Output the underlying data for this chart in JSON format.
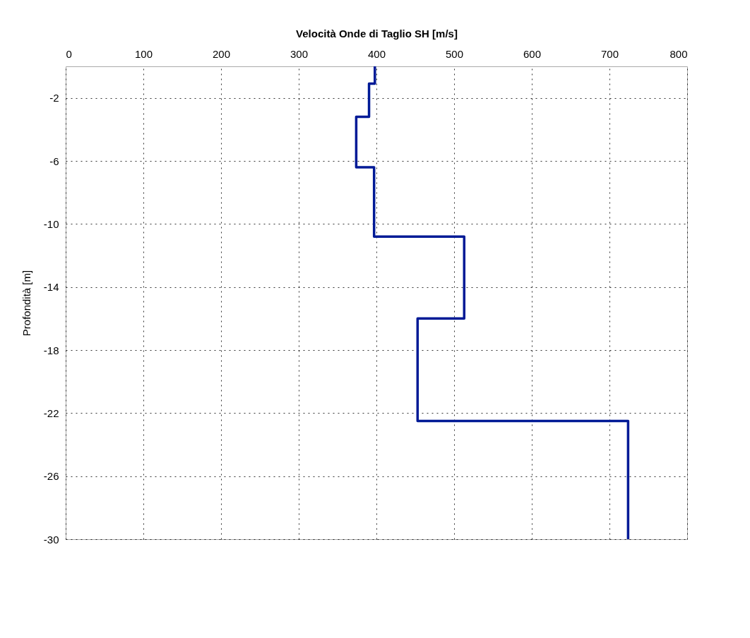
{
  "chart_data": {
    "type": "line",
    "xlabel": "Velocità Onde di Taglio SH [m/s]",
    "ylabel": "Profondità [m]",
    "xlim": [
      0,
      800
    ],
    "xticks": [
      0,
      100,
      200,
      300,
      400,
      500,
      600,
      700,
      800
    ],
    "ylim": [
      -30,
      0
    ],
    "yticks": [
      -30,
      -26,
      -22,
      -18,
      -14,
      -10,
      -6,
      -2
    ],
    "grid": true,
    "series": [
      {
        "color": "#001a96",
        "x": [
          398,
          398,
          390.5,
          390.5,
          374,
          374,
          397,
          397,
          513,
          513,
          453,
          453,
          724,
          724
        ],
        "values": [
          0,
          -1.1,
          -1.1,
          -3.2,
          -3.2,
          -6.4,
          -6.4,
          -10.8,
          -10.8,
          -16,
          -16,
          -22.5,
          -22.5,
          -30
        ]
      }
    ]
  }
}
